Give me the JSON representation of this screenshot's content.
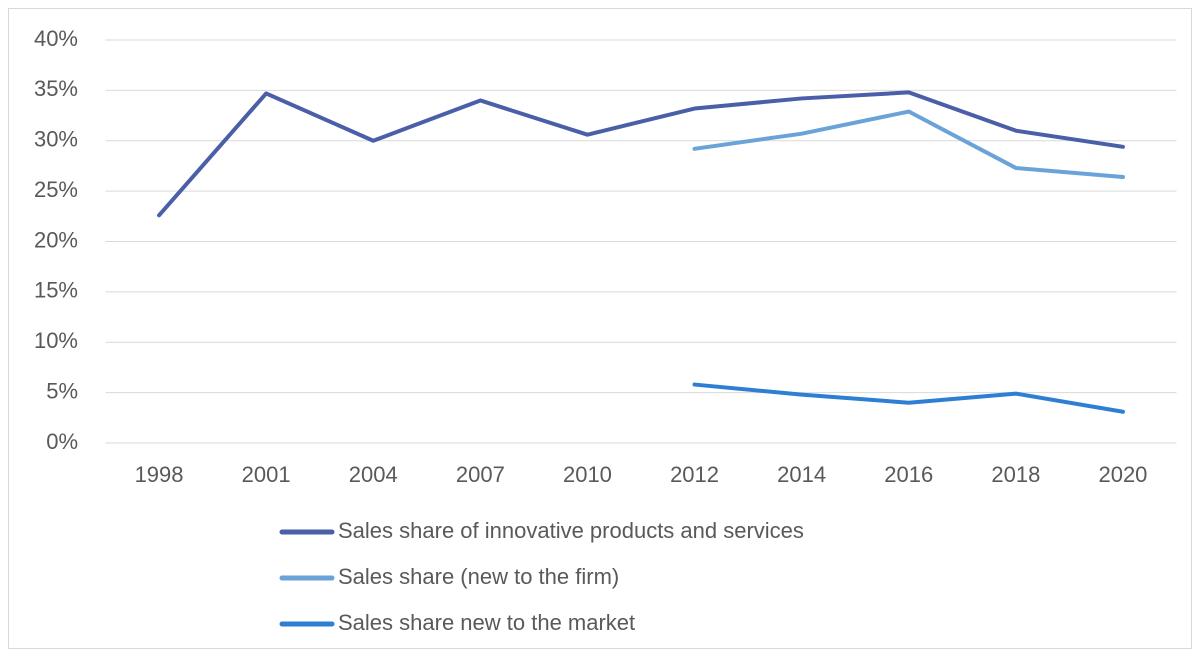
{
  "chart_data": {
    "type": "line",
    "categories": [
      "1998",
      "2001",
      "2004",
      "2007",
      "2010",
      "2012",
      "2014",
      "2016",
      "2018",
      "2020"
    ],
    "series": [
      {
        "name": "Sales share of innovative products and services",
        "color": "#4a5fa8",
        "values": [
          22.6,
          34.7,
          30.0,
          34.0,
          30.6,
          33.2,
          34.2,
          34.8,
          31.0,
          29.4
        ]
      },
      {
        "name": "Sales share (new to the firm)",
        "color": "#6aa3d8",
        "values": [
          null,
          null,
          null,
          null,
          null,
          29.2,
          30.7,
          32.9,
          27.3,
          26.4
        ]
      },
      {
        "name": "Sales share new to the market",
        "color": "#2e7fd4",
        "values": [
          null,
          null,
          null,
          null,
          null,
          5.8,
          4.8,
          4.0,
          4.9,
          3.1
        ]
      }
    ],
    "ylim": [
      0,
      40
    ],
    "yticks": [
      {
        "value": 0,
        "label": "0%"
      },
      {
        "value": 5,
        "label": "5%"
      },
      {
        "value": 10,
        "label": "10%"
      },
      {
        "value": 15,
        "label": "15%"
      },
      {
        "value": 20,
        "label": "20%"
      },
      {
        "value": 25,
        "label": "25%"
      },
      {
        "value": 30,
        "label": "30%"
      },
      {
        "value": 35,
        "label": "35%"
      },
      {
        "value": 40,
        "label": "40%"
      }
    ],
    "grid": true,
    "legend": "bottom"
  }
}
